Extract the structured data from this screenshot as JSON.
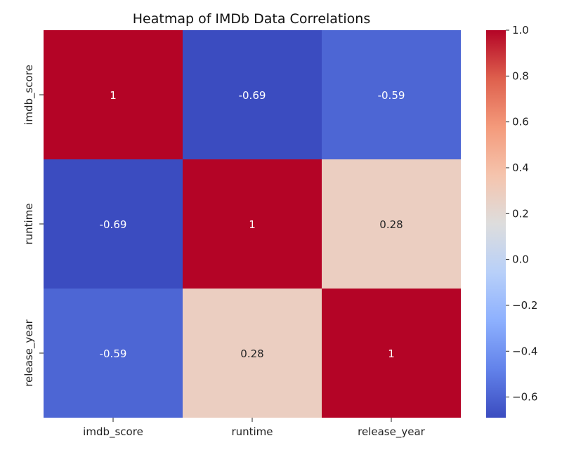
{
  "chart_data": {
    "type": "heatmap",
    "title": "Heatmap of IMDb Data Correlations",
    "xlabel": "",
    "ylabel": "",
    "x_categories": [
      "imdb_score",
      "runtime",
      "release_year"
    ],
    "y_categories": [
      "imdb_score",
      "runtime",
      "release_year"
    ],
    "values": [
      [
        1,
        -0.69,
        -0.59
      ],
      [
        -0.69,
        1,
        0.28
      ],
      [
        -0.59,
        0.28,
        1
      ]
    ],
    "annotations": [
      [
        "1",
        "-0.69",
        "-0.59"
      ],
      [
        "-0.69",
        "1",
        "0.28"
      ],
      [
        "-0.59",
        "0.28",
        "1"
      ]
    ],
    "colormap": "coolwarm",
    "vmin": -0.69,
    "vmax": 1.0,
    "colorbar": {
      "ticks": [
        1.0,
        0.8,
        0.6,
        0.4,
        0.2,
        0.0,
        -0.2,
        -0.4,
        -0.6
      ],
      "tick_labels": [
        "1.0",
        "0.8",
        "0.6",
        "0.4",
        "0.2",
        "0.0",
        "−0.2",
        "−0.4",
        "−0.6"
      ]
    },
    "grid": false,
    "legend": "colorbar-right"
  }
}
